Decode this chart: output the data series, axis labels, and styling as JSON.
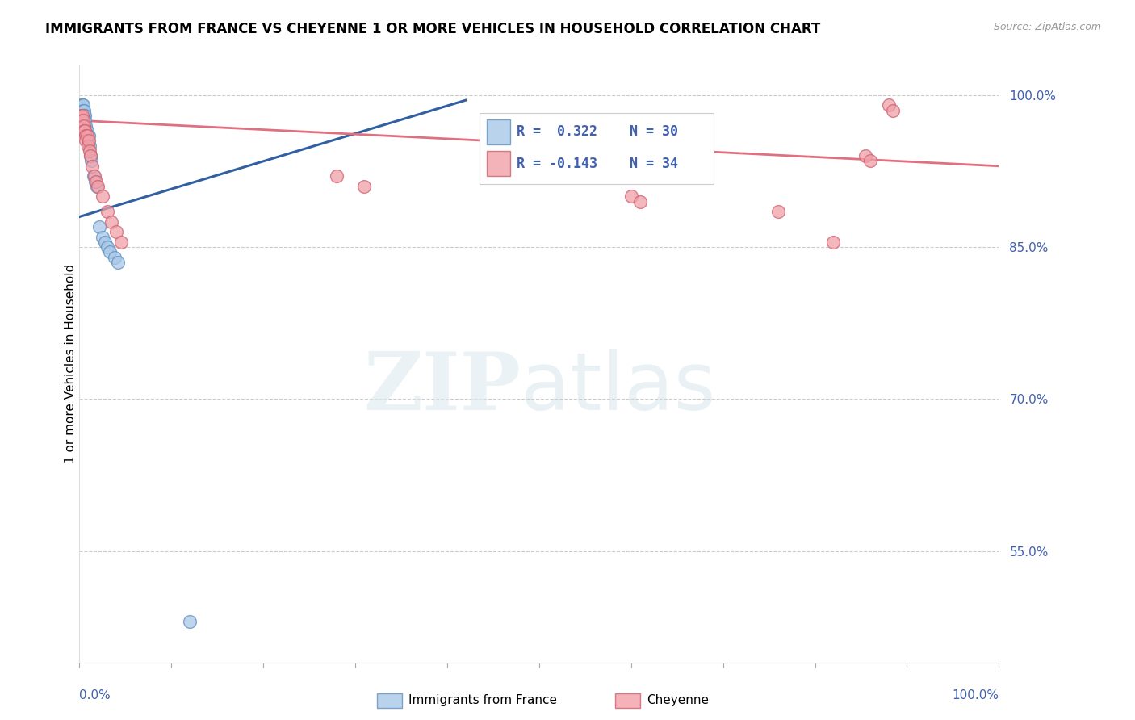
{
  "title": "IMMIGRANTS FROM FRANCE VS CHEYENNE 1 OR MORE VEHICLES IN HOUSEHOLD CORRELATION CHART",
  "source": "Source: ZipAtlas.com",
  "ylabel": "1 or more Vehicles in Household",
  "xlim": [
    0.0,
    1.0
  ],
  "ylim": [
    0.44,
    1.03
  ],
  "yticks": [
    0.55,
    0.7,
    0.85,
    1.0
  ],
  "blue_R": 0.322,
  "blue_N": 30,
  "pink_R": -0.143,
  "pink_N": 34,
  "blue_color": "#a8c8e8",
  "pink_color": "#f0a0a8",
  "blue_edge_color": "#6090c0",
  "pink_edge_color": "#d06070",
  "blue_line_color": "#3060a0",
  "pink_line_color": "#e07080",
  "legend_label_blue": "Immigrants from France",
  "legend_label_pink": "Cheyenne",
  "blue_points_x": [
    0.001,
    0.002,
    0.003,
    0.003,
    0.004,
    0.004,
    0.005,
    0.005,
    0.006,
    0.006,
    0.007,
    0.007,
    0.008,
    0.009,
    0.009,
    0.01,
    0.011,
    0.012,
    0.013,
    0.015,
    0.017,
    0.019,
    0.022,
    0.025,
    0.028,
    0.03,
    0.033,
    0.038,
    0.042,
    0.12
  ],
  "blue_points_y": [
    0.99,
    0.985,
    0.99,
    0.985,
    0.99,
    0.985,
    0.985,
    0.98,
    0.98,
    0.975,
    0.97,
    0.965,
    0.965,
    0.96,
    0.955,
    0.96,
    0.95,
    0.94,
    0.935,
    0.92,
    0.915,
    0.91,
    0.87,
    0.86,
    0.855,
    0.85,
    0.845,
    0.84,
    0.835,
    0.48
  ],
  "pink_points_x": [
    0.001,
    0.002,
    0.003,
    0.003,
    0.004,
    0.005,
    0.005,
    0.006,
    0.007,
    0.007,
    0.008,
    0.009,
    0.01,
    0.011,
    0.012,
    0.014,
    0.016,
    0.018,
    0.02,
    0.025,
    0.03,
    0.035,
    0.04,
    0.045,
    0.28,
    0.31,
    0.6,
    0.61,
    0.76,
    0.82,
    0.855,
    0.86,
    0.88,
    0.885
  ],
  "pink_points_y": [
    0.98,
    0.975,
    0.98,
    0.97,
    0.975,
    0.97,
    0.965,
    0.965,
    0.96,
    0.955,
    0.96,
    0.95,
    0.955,
    0.945,
    0.94,
    0.93,
    0.92,
    0.915,
    0.91,
    0.9,
    0.885,
    0.875,
    0.865,
    0.855,
    0.92,
    0.91,
    0.9,
    0.895,
    0.885,
    0.855,
    0.94,
    0.935,
    0.99,
    0.985
  ],
  "blue_line_x": [
    0.0,
    0.42
  ],
  "blue_line_y": [
    0.88,
    0.995
  ],
  "pink_line_x": [
    0.0,
    1.0
  ],
  "pink_line_y": [
    0.975,
    0.93
  ]
}
